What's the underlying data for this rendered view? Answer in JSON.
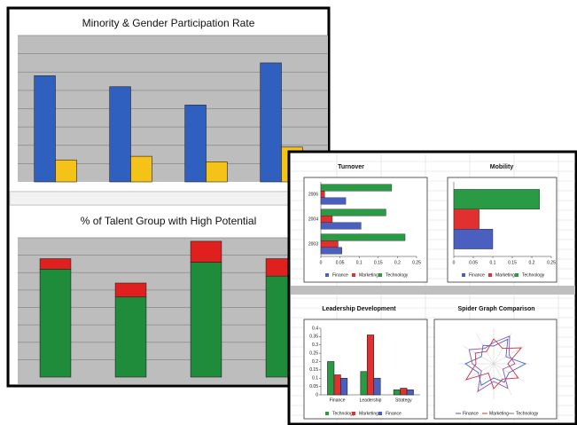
{
  "chart_data": [
    {
      "type": "bar",
      "title": "Minority & Gender Participation Rate",
      "categories": [
        null,
        null,
        null,
        null
      ],
      "series": [
        {
          "color": "#2f5fbf",
          "values": [
            5.8,
            5.2,
            4.2,
            6.5
          ]
        },
        {
          "color": "#f5c217",
          "values": [
            1.2,
            1.4,
            1.1,
            1.9
          ]
        }
      ],
      "ylim": [
        0,
        8
      ],
      "grid": true
    },
    {
      "type": "bar",
      "stacked": true,
      "title": "% of Talent Group with High Potential",
      "categories": [
        null,
        null,
        null,
        null
      ],
      "series": [
        {
          "color": "#1e8c3a",
          "values": [
            6.2,
            4.6,
            6.6,
            5.8
          ]
        },
        {
          "color": "#e0201f",
          "values": [
            0.6,
            0.8,
            1.2,
            1.0
          ]
        }
      ],
      "ylim": [
        0,
        8
      ],
      "grid": true
    },
    {
      "type": "barh",
      "title": "Turnover",
      "categories": [
        "2006",
        "2004",
        "2003"
      ],
      "series": [
        {
          "name": "Finance",
          "color": "#4a5fc0",
          "values": [
            0.065,
            0.105,
            0.055
          ]
        },
        {
          "name": "Marketing",
          "color": "#e03030",
          "values": [
            0.01,
            0.03,
            0.045
          ]
        },
        {
          "name": "Technology",
          "color": "#2a9a45",
          "values": [
            0.185,
            0.17,
            0.22
          ]
        }
      ],
      "xlim": [
        0,
        0.25
      ],
      "xticks": [
        0,
        0.05,
        0.1,
        0.15,
        0.2,
        0.25
      ]
    },
    {
      "type": "barh",
      "title": "Mobility",
      "categories": [
        null
      ],
      "series": [
        {
          "name": "Finance",
          "color": "#4a5fc0",
          "values": [
            0.1
          ]
        },
        {
          "name": "Marketing",
          "color": "#e03030",
          "values": [
            0.065
          ]
        },
        {
          "name": "Technology",
          "color": "#2a9a45",
          "values": [
            0.22
          ]
        }
      ],
      "xlim": [
        0,
        0.25
      ],
      "xticks": [
        0,
        0.05,
        0.1,
        0.15,
        0.2,
        0.25
      ]
    },
    {
      "type": "bar",
      "title": "Leadership Development",
      "categories": [
        "Finance",
        "Leadership",
        "Strategy"
      ],
      "series": [
        {
          "name": "Technology",
          "color": "#2a9a45",
          "values": [
            0.2,
            0.14,
            0.03
          ]
        },
        {
          "name": "Marketing",
          "color": "#e03030",
          "values": [
            0.12,
            0.36,
            0.04
          ]
        },
        {
          "name": "Finance",
          "color": "#4a5fc0",
          "values": [
            0.1,
            0.1,
            0.03
          ]
        }
      ],
      "ylim": [
        0,
        0.4
      ],
      "yticks": [
        0,
        0.05,
        0.1,
        0.15,
        0.2,
        0.25,
        0.3,
        0.35,
        0.4
      ]
    },
    {
      "type": "radar",
      "title": "Spider Graph Comparison",
      "series": [
        {
          "name": "Finance",
          "color": "#4a5fc0",
          "values": [
            0.5,
            0.8,
            0.4,
            0.9,
            0.5,
            0.6,
            0.4,
            0.7,
            0.5,
            0.8,
            0.4,
            0.6
          ]
        },
        {
          "name": "Marketing",
          "color": "#d03040",
          "values": [
            0.7,
            0.5,
            0.9,
            0.4,
            0.8,
            0.5,
            0.7,
            0.3,
            0.9,
            0.5,
            0.6,
            0.4
          ]
        },
        {
          "name": "Technology",
          "color": "#8a5aa8",
          "values": [
            0.6,
            0.9,
            0.5,
            0.6,
            0.3,
            0.8,
            0.5,
            0.9,
            0.4,
            0.6,
            0.8,
            0.5
          ]
        }
      ],
      "rlim": [
        0,
        1
      ]
    }
  ]
}
